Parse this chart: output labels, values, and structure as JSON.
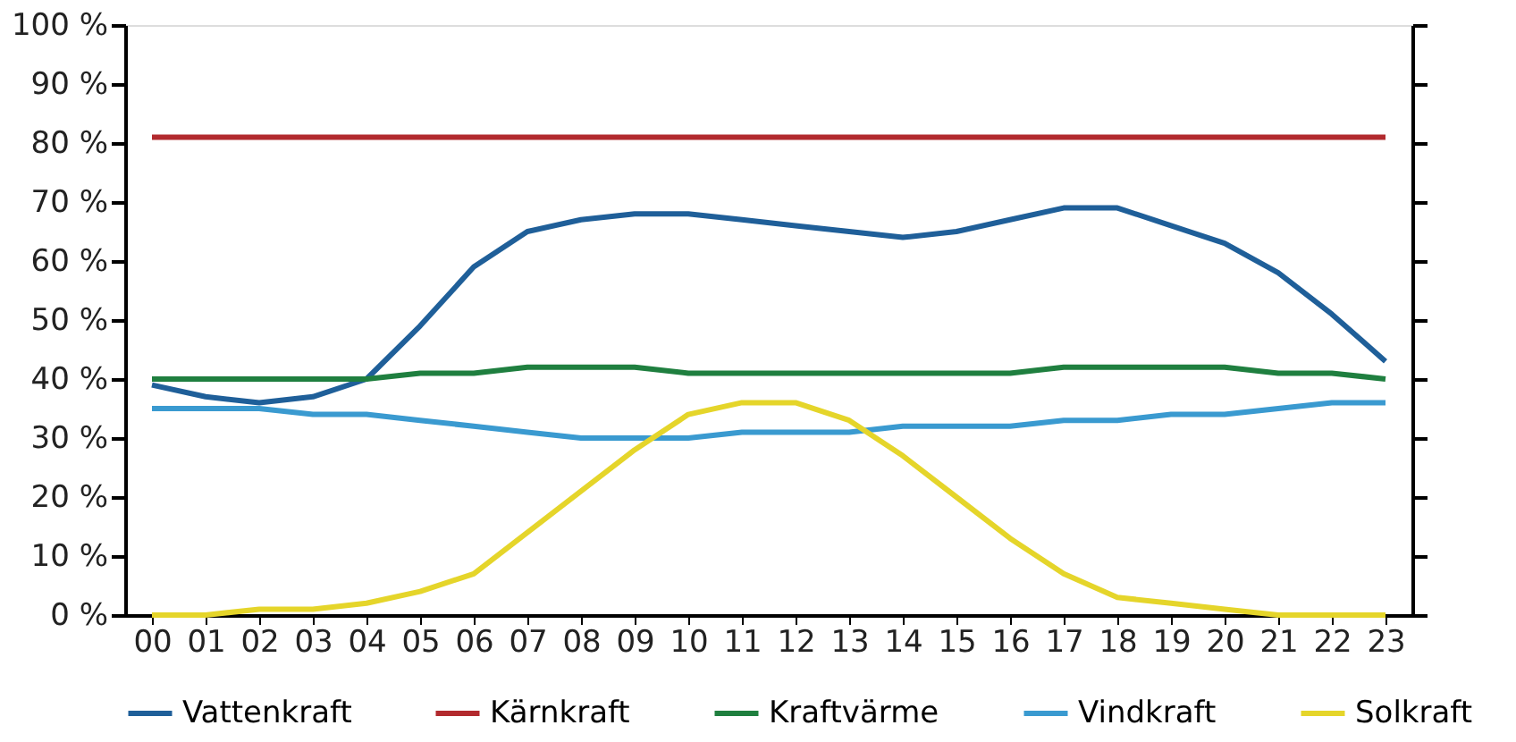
{
  "chart_data": {
    "type": "line",
    "categories": [
      "00",
      "01",
      "02",
      "03",
      "04",
      "05",
      "06",
      "07",
      "08",
      "09",
      "10",
      "11",
      "12",
      "13",
      "14",
      "15",
      "16",
      "17",
      "18",
      "19",
      "20",
      "21",
      "22",
      "23"
    ],
    "series": [
      {
        "name": "Vattenkraft",
        "color": "#1f5f99",
        "values": [
          39,
          37,
          36,
          37,
          40,
          49,
          59,
          65,
          67,
          68,
          68,
          67,
          66,
          65,
          64,
          65,
          67,
          69,
          69,
          66,
          63,
          58,
          51,
          43
        ]
      },
      {
        "name": "Kärnkraft",
        "color": "#b22a2e",
        "values": [
          81,
          81,
          81,
          81,
          81,
          81,
          81,
          81,
          81,
          81,
          81,
          81,
          81,
          81,
          81,
          81,
          81,
          81,
          81,
          81,
          81,
          81,
          81,
          81
        ]
      },
      {
        "name": "Kraftvärme",
        "color": "#1f7f3f",
        "values": [
          40,
          40,
          40,
          40,
          40,
          41,
          41,
          42,
          42,
          42,
          41,
          41,
          41,
          41,
          41,
          41,
          41,
          42,
          42,
          42,
          42,
          41,
          41,
          40
        ]
      },
      {
        "name": "Vindkraft",
        "color": "#3a9ad0",
        "values": [
          35,
          35,
          35,
          34,
          34,
          33,
          32,
          31,
          30,
          30,
          30,
          31,
          31,
          31,
          32,
          32,
          32,
          33,
          33,
          34,
          34,
          35,
          36,
          36
        ]
      },
      {
        "name": "Solkraft",
        "color": "#e5d52a",
        "values": [
          0,
          0,
          1,
          1,
          2,
          4,
          7,
          14,
          21,
          28,
          34,
          36,
          36,
          33,
          27,
          20,
          13,
          7,
          3,
          2,
          1,
          0,
          0,
          0
        ]
      }
    ],
    "ylim": [
      0,
      100
    ],
    "yticks": [
      {
        "value": 0,
        "label": "0 %"
      },
      {
        "value": 10,
        "label": "10 %"
      },
      {
        "value": 20,
        "label": "20 %"
      },
      {
        "value": 30,
        "label": "30 %"
      },
      {
        "value": 40,
        "label": "40 %"
      },
      {
        "value": 50,
        "label": "50 %"
      },
      {
        "value": 60,
        "label": "60 %"
      },
      {
        "value": 70,
        "label": "70 %"
      },
      {
        "value": 80,
        "label": "80 %"
      },
      {
        "value": 90,
        "label": "90 %"
      },
      {
        "value": 100,
        "label": "100 %"
      }
    ],
    "grid": false,
    "legend": "bottom",
    "marker": "none",
    "line_style": "solid"
  }
}
